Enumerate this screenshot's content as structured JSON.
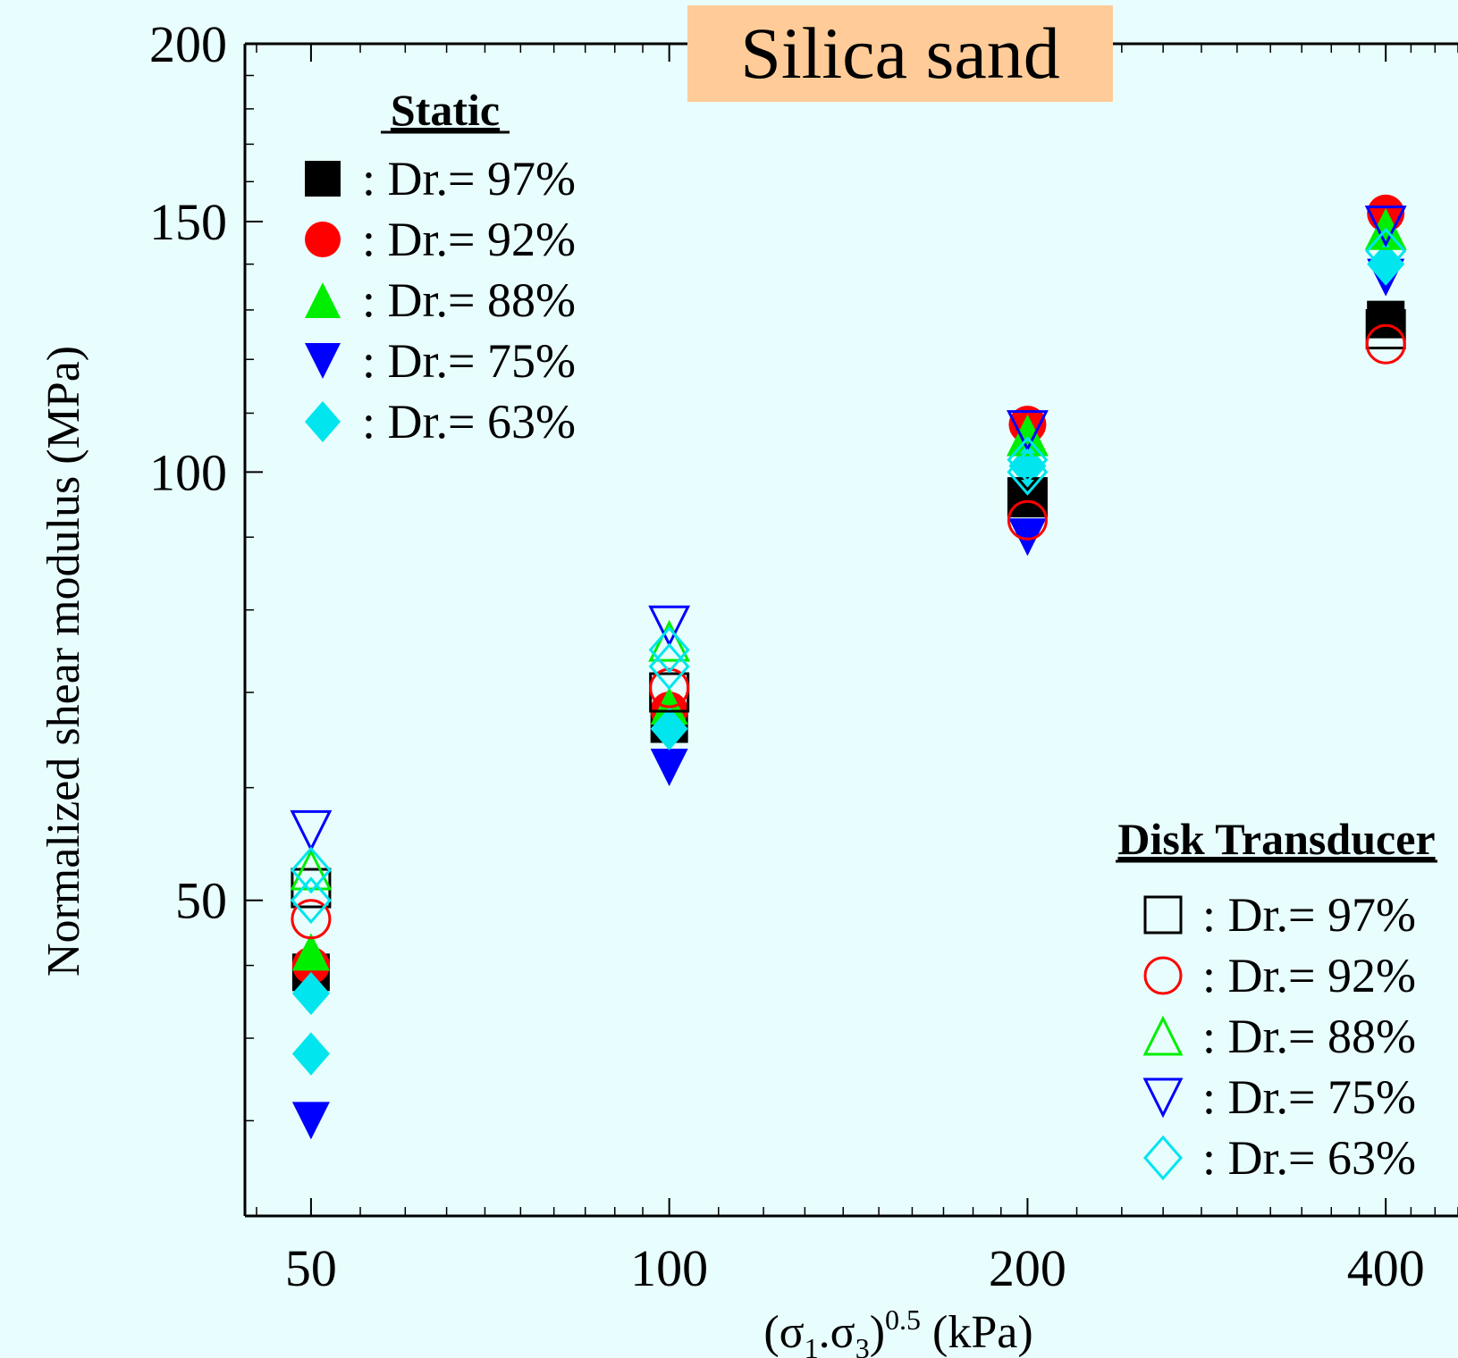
{
  "chart_data": {
    "type": "scatter",
    "title": "Silica sand",
    "xlabel_main": "(σ",
    "xlabel_sub1": "1",
    "xlabel_dot": ".σ",
    "xlabel_sub3": "3",
    "xlabel_paren": ")",
    "xlabel_sup": "0.5",
    "xlabel_unit": " (kPa)",
    "ylabel": "Normalized shear modulus (MPa)",
    "x_scale": "log",
    "y_scale": "log",
    "xlim": [
      44,
      460
    ],
    "ylim": [
      30,
      200
    ],
    "x_ticks": [
      {
        "value": 50,
        "label": "50"
      },
      {
        "value": 100,
        "label": "100"
      },
      {
        "value": 200,
        "label": "200"
      },
      {
        "value": 400,
        "label": "400"
      }
    ],
    "y_ticks": [
      {
        "value": 50,
        "label": "50"
      },
      {
        "value": 100,
        "label": "100"
      },
      {
        "value": 150,
        "label": "150"
      },
      {
        "value": 200,
        "label": "200"
      }
    ],
    "legends": [
      {
        "title": "Static",
        "placement": "top-left",
        "entries": [
          {
            "marker": "square-filled",
            "label": ": Dr.= 97%"
          },
          {
            "marker": "circle-filled",
            "label": ": Dr.= 92%"
          },
          {
            "marker": "triangle-up-filled",
            "label": ": Dr.= 88%"
          },
          {
            "marker": "triangle-down-filled",
            "label": ": Dr.= 75%"
          },
          {
            "marker": "diamond-filled",
            "label": ": Dr.= 63%"
          }
        ]
      },
      {
        "title": "Disk Transducer",
        "placement": "bottom-right",
        "entries": [
          {
            "marker": "square-open",
            "label": ": Dr.= 97%"
          },
          {
            "marker": "circle-open",
            "label": ": Dr.= 92%"
          },
          {
            "marker": "triangle-up-open",
            "label": ": Dr.= 88%"
          },
          {
            "marker": "triangle-down-open",
            "label": ": Dr.= 75%"
          },
          {
            "marker": "diamond-open",
            "label": ": Dr.= 63%"
          }
        ]
      }
    ],
    "series": [
      {
        "group": "Static",
        "marker": "square-filled",
        "color": "#000000",
        "label": "Dr.= 97%",
        "x": [
          50,
          100,
          200,
          400
        ],
        "y": [
          44.5,
          66.5,
          96,
          128
        ]
      },
      {
        "group": "Static",
        "marker": "circle-filled",
        "color": "#ff0000",
        "label": "Dr.= 92%",
        "x": [
          50,
          100,
          200,
          400
        ],
        "y": [
          45,
          68,
          108,
          152
        ]
      },
      {
        "group": "Static",
        "marker": "triangle-up-filled",
        "color": "#00ee00",
        "label": "Dr.= 88%",
        "x": [
          50,
          100,
          200,
          400
        ],
        "y": [
          46,
          68.5,
          106,
          148
        ]
      },
      {
        "group": "Static",
        "marker": "triangle-down-filled",
        "color": "#0000ff",
        "label": "Dr.= 75%",
        "x": [
          50,
          100,
          200,
          400
        ],
        "y": [
          35,
          62,
          90,
          137
        ]
      },
      {
        "group": "Static",
        "marker": "diamond-filled",
        "color": "#00e5ee",
        "label": "Dr.= 63%",
        "x": [
          50,
          100,
          200,
          400
        ],
        "y": [
          43,
          66,
          101,
          140
        ]
      },
      {
        "group": "Static",
        "marker": "diamond-filled",
        "color": "#00e5ee",
        "label": "Dr.= 63%",
        "x": [
          50
        ],
        "y": [
          39
        ]
      },
      {
        "group": "Disk Transducer",
        "marker": "square-open",
        "color": "#000000",
        "label": "Dr.= 97%",
        "x": [
          50,
          100,
          200,
          400
        ],
        "y": [
          51,
          70,
          96,
          126
        ]
      },
      {
        "group": "Disk Transducer",
        "marker": "circle-open",
        "color": "#ff0000",
        "label": "Dr.= 92%",
        "x": [
          50,
          100,
          200,
          400
        ],
        "y": [
          48.5,
          70.5,
          92.5,
          123
        ]
      },
      {
        "group": "Disk Transducer",
        "marker": "triangle-up-open",
        "color": "#00ee00",
        "label": "Dr.= 88%",
        "x": [
          50,
          100,
          200,
          400
        ],
        "y": [
          52.5,
          76,
          106,
          148
        ]
      },
      {
        "group": "Disk Transducer",
        "marker": "triangle-down-open",
        "color": "#0000ff",
        "label": "Dr.= 75%",
        "x": [
          50,
          100,
          200,
          400
        ],
        "y": [
          56,
          78,
          107,
          149
        ]
      },
      {
        "group": "Disk Transducer",
        "marker": "diamond-open",
        "color": "#00e5ee",
        "label": "Dr.= 63%",
        "x": [
          50,
          100,
          200,
          400
        ],
        "y": [
          52.5,
          75,
          102,
          143
        ]
      },
      {
        "group": "Disk Transducer",
        "marker": "diamond-open",
        "color": "#00e5ee",
        "label": "Dr.= 63%",
        "x": [
          50,
          100,
          200
        ],
        "y": [
          50,
          73,
          100
        ]
      }
    ]
  }
}
